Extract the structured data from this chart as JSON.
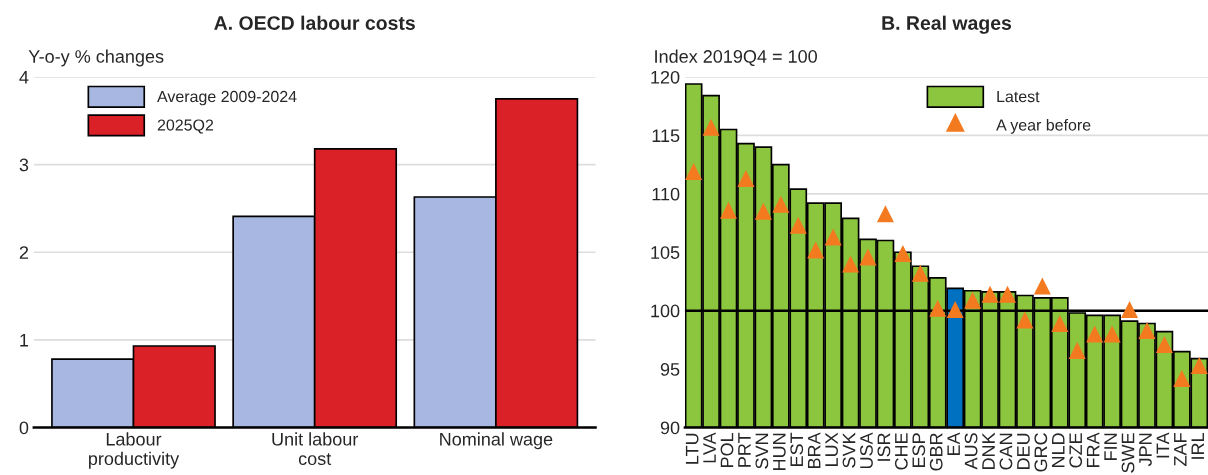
{
  "chart_data": [
    {
      "type": "bar",
      "title": "A. OECD labour costs",
      "ylabel": "Y-o-y % changes",
      "categories": [
        "Labour\nproductivity",
        "Unit labour\ncost",
        "Nominal wage"
      ],
      "series": [
        {
          "name": "Average 2009-2024",
          "color": "#a7b7e1",
          "values": [
            0.78,
            2.41,
            2.63
          ]
        },
        {
          "name": "2025Q2",
          "color": "#da2128",
          "values": [
            0.93,
            3.18,
            3.75
          ]
        }
      ],
      "ylim": [
        0,
        4
      ],
      "yticks": [
        0,
        1,
        2,
        3,
        4
      ],
      "grid": "y",
      "legend": "top left"
    },
    {
      "type": "bar",
      "title": "B. Real wages",
      "ylabel": "Index 2019Q4 = 100",
      "categories": [
        "LTU",
        "LVA",
        "POL",
        "PRT",
        "SVN",
        "HUN",
        "EST",
        "BRA",
        "LUX",
        "SVK",
        "USA",
        "ISR",
        "CHE",
        "ESP",
        "GBR",
        "EA",
        "AUS",
        "DNK",
        "CAN",
        "DEU",
        "GRC",
        "NLD",
        "CZE",
        "FRA",
        "FIN",
        "SWE",
        "JPN",
        "ITA",
        "ZAF",
        "IRL"
      ],
      "series": [
        {
          "name": "Latest",
          "color": "#8cc63f",
          "colors": [
            "#8cc63f",
            "#8cc63f",
            "#8cc63f",
            "#8cc63f",
            "#8cc63f",
            "#8cc63f",
            "#8cc63f",
            "#8cc63f",
            "#8cc63f",
            "#8cc63f",
            "#8cc63f",
            "#8cc63f",
            "#8cc63f",
            "#8cc63f",
            "#8cc63f",
            "#0070c0",
            "#8cc63f",
            "#8cc63f",
            "#8cc63f",
            "#8cc63f",
            "#8cc63f",
            "#8cc63f",
            "#8cc63f",
            "#8cc63f",
            "#8cc63f",
            "#8cc63f",
            "#8cc63f",
            "#8cc63f",
            "#8cc63f",
            "#8cc63f"
          ],
          "values": [
            119.4,
            118.4,
            115.5,
            114.3,
            114.0,
            112.5,
            110.4,
            109.2,
            109.2,
            107.9,
            106.1,
            106.0,
            105.0,
            103.8,
            102.8,
            101.9,
            101.7,
            101.6,
            101.6,
            101.3,
            101.1,
            101.1,
            99.8,
            99.6,
            99.6,
            99.1,
            98.9,
            98.2,
            96.5,
            95.9
          ]
        },
        {
          "name": "A year before",
          "type": "scatter",
          "marker": "triangle",
          "color": "#f47a20",
          "values": [
            111.9,
            115.7,
            108.6,
            111.3,
            108.5,
            109.1,
            107.3,
            105.2,
            106.3,
            104.0,
            104.6,
            108.3,
            104.9,
            103.2,
            100.2,
            100.1,
            100.9,
            101.4,
            101.4,
            99.2,
            102.1,
            98.9,
            96.6,
            98.0,
            98.0,
            100.1,
            98.3,
            97.1,
            94.2,
            95.3
          ]
        }
      ],
      "ylim": [
        90,
        120
      ],
      "yticks": [
        90,
        95,
        100,
        105,
        110,
        115,
        120
      ],
      "grid": "y",
      "legend": "top right",
      "ref_lines": [
        {
          "axis": "y",
          "value": 100,
          "color": "#000000"
        }
      ]
    }
  ]
}
